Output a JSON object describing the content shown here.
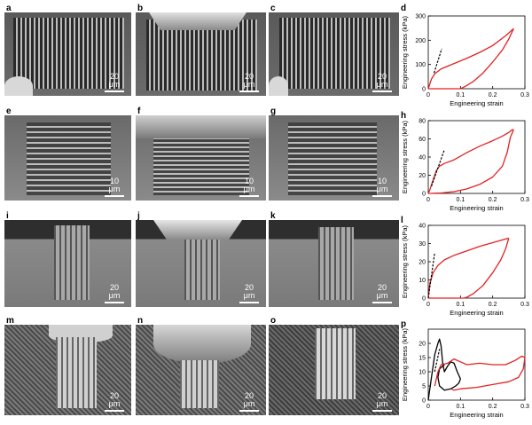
{
  "figure": {
    "panel_letters": [
      "a",
      "b",
      "c",
      "d",
      "e",
      "f",
      "g",
      "h",
      "i",
      "j",
      "k",
      "l",
      "m",
      "n",
      "o",
      "p"
    ],
    "scale_bars": {
      "a": "20 μm",
      "b": "20 μm",
      "c": "20 μm",
      "e": "10 μm",
      "f": "10 μm",
      "g": "10 μm",
      "i": "20 μm",
      "j": "20 μm",
      "k": "20 μm",
      "m": "20 μm",
      "n": "20 μm",
      "o": "20 μm"
    }
  },
  "chart_data": [
    {
      "panel": "d",
      "type": "line",
      "xlabel": "Engineering strain",
      "ylabel": "Engineering stress (kPa)",
      "xlim": [
        0,
        0.3
      ],
      "ylim": [
        0,
        300
      ],
      "xticks": [
        "0",
        "0.1",
        "0.2",
        "0.3"
      ],
      "yticks": [
        "0",
        "100",
        "200",
        "300"
      ],
      "loading": [
        [
          0,
          0
        ],
        [
          0.01,
          40
        ],
        [
          0.02,
          62
        ],
        [
          0.04,
          82
        ],
        [
          0.08,
          104
        ],
        [
          0.12,
          126
        ],
        [
          0.16,
          150
        ],
        [
          0.2,
          178
        ],
        [
          0.24,
          218
        ],
        [
          0.265,
          248
        ]
      ],
      "unloading": [
        [
          0.265,
          248
        ],
        [
          0.25,
          205
        ],
        [
          0.23,
          160
        ],
        [
          0.2,
          110
        ],
        [
          0.17,
          65
        ],
        [
          0.14,
          30
        ],
        [
          0.115,
          10
        ],
        [
          0.1,
          0
        ]
      ],
      "baseline": [
        [
          0,
          0
        ],
        [
          0.1,
          0
        ]
      ],
      "fit": [
        [
          0.018,
          65
        ],
        [
          0.042,
          165
        ]
      ]
    },
    {
      "panel": "h",
      "type": "line",
      "xlabel": "Engineering strain",
      "ylabel": "Engineering stress (kPa)",
      "xlim": [
        0,
        0.3
      ],
      "ylim": [
        0,
        80
      ],
      "xticks": [
        "0",
        "0.1",
        "0.2",
        "0.3"
      ],
      "yticks": [
        "0",
        "20",
        "40",
        "60",
        "80"
      ],
      "loading": [
        [
          0,
          0
        ],
        [
          0.005,
          4
        ],
        [
          0.015,
          15
        ],
        [
          0.025,
          25
        ],
        [
          0.035,
          30
        ],
        [
          0.05,
          33
        ],
        [
          0.08,
          37
        ],
        [
          0.12,
          45
        ],
        [
          0.16,
          52
        ],
        [
          0.2,
          58
        ],
        [
          0.23,
          63
        ],
        [
          0.25,
          67
        ],
        [
          0.26,
          70
        ],
        [
          0.265,
          70
        ]
      ],
      "unloading": [
        [
          0.265,
          70
        ],
        [
          0.255,
          62
        ],
        [
          0.245,
          45
        ],
        [
          0.23,
          30
        ],
        [
          0.2,
          18
        ],
        [
          0.16,
          10
        ],
        [
          0.12,
          5
        ],
        [
          0.08,
          2
        ],
        [
          0.04,
          0.5
        ],
        [
          0,
          0
        ]
      ],
      "fit": [
        [
          0.01,
          8
        ],
        [
          0.05,
          48
        ]
      ]
    },
    {
      "panel": "l",
      "type": "line",
      "xlabel": "Engineering strain",
      "ylabel": "Engineering stress (kPa)",
      "xlim": [
        0,
        0.3
      ],
      "ylim": [
        0,
        40
      ],
      "xticks": [
        "0",
        "0.1",
        "0.2",
        "0.3"
      ],
      "yticks": [
        "0",
        "10",
        "20",
        "30",
        "40"
      ],
      "loading": [
        [
          0,
          0
        ],
        [
          0.005,
          8
        ],
        [
          0.015,
          14
        ],
        [
          0.03,
          18
        ],
        [
          0.05,
          21
        ],
        [
          0.08,
          23.5
        ],
        [
          0.12,
          26
        ],
        [
          0.16,
          28.5
        ],
        [
          0.2,
          30.5
        ],
        [
          0.23,
          32
        ],
        [
          0.25,
          33
        ]
      ],
      "unloading": [
        [
          0.25,
          33
        ],
        [
          0.24,
          27
        ],
        [
          0.225,
          21
        ],
        [
          0.2,
          14
        ],
        [
          0.17,
          7
        ],
        [
          0.14,
          2.5
        ],
        [
          0.12,
          0.5
        ],
        [
          0.11,
          0
        ]
      ],
      "baseline": [
        [
          0,
          0
        ],
        [
          0.11,
          0
        ]
      ],
      "fit": [
        [
          0,
          0
        ],
        [
          0.02,
          25
        ]
      ]
    },
    {
      "panel": "p",
      "type": "line",
      "xlabel": "Engineering strain",
      "ylabel": "Engineering stress (kPa)",
      "xlim": [
        0,
        0.3
      ],
      "ylim": [
        0,
        25
      ],
      "xticks": [
        "0",
        "0.1",
        "0.2",
        "0.3"
      ],
      "yticks": [
        "0",
        "5",
        "10",
        "15",
        "20"
      ],
      "series": [
        {
          "color": "#000000",
          "values": [
            [
              0,
              0
            ],
            [
              0.01,
              8
            ],
            [
              0.02,
              16
            ],
            [
              0.03,
              20
            ],
            [
              0.035,
              21.5
            ],
            [
              0.04,
              19
            ],
            [
              0.045,
              13
            ],
            [
              0.05,
              10
            ],
            [
              0.06,
              12
            ],
            [
              0.07,
              13.5
            ],
            [
              0.08,
              13
            ],
            [
              0.09,
              10
            ],
            [
              0.1,
              7.5
            ],
            [
              0.095,
              6
            ],
            [
              0.085,
              5
            ],
            [
              0.07,
              4
            ],
            [
              0.05,
              3.5
            ],
            [
              0.035,
              5
            ],
            [
              0.03,
              8
            ],
            [
              0.035,
              11
            ],
            [
              0.05,
              12.5
            ]
          ]
        },
        {
          "color": "#e32222",
          "values": [
            [
              0.02,
              5
            ],
            [
              0.03,
              10
            ],
            [
              0.04,
              12.5
            ],
            [
              0.06,
              13
            ],
            [
              0.08,
              14.5
            ],
            [
              0.1,
              13.5
            ],
            [
              0.12,
              12.5
            ],
            [
              0.16,
              13
            ],
            [
              0.2,
              12.5
            ],
            [
              0.24,
              12.5
            ],
            [
              0.27,
              14
            ],
            [
              0.29,
              15.5
            ],
            [
              0.3,
              15
            ],
            [
              0.295,
              11
            ],
            [
              0.28,
              8
            ],
            [
              0.25,
              6.5
            ],
            [
              0.2,
              5.5
            ],
            [
              0.15,
              4.5
            ],
            [
              0.1,
              4
            ],
            [
              0.08,
              3.5
            ],
            [
              0.07,
              4
            ]
          ]
        }
      ],
      "fit": [
        [
          0.02,
          10
        ],
        [
          0.035,
          18
        ]
      ]
    }
  ]
}
